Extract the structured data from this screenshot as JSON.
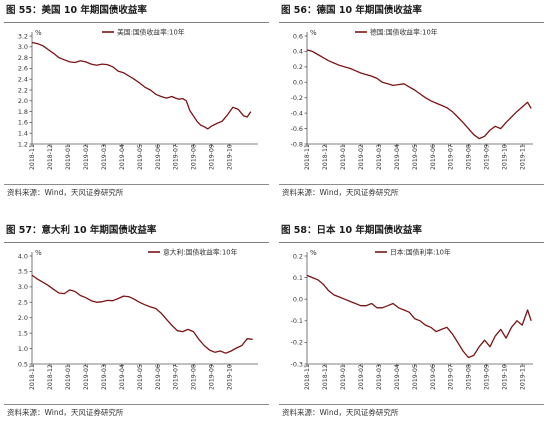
{
  "source_label": "资料来源：Wind，天风证券研究所",
  "colors": {
    "line": "#7b1515",
    "axis": "#595959",
    "text": "#333333",
    "rule": "#7f7f7f"
  },
  "chart_data": [
    {
      "type": "line",
      "title": "图 55：美国 10 年期国债收益率",
      "ylabel": "%",
      "legend": "美国:国债收益率:10年",
      "legend_position": "top-center",
      "grid": false,
      "ylim": [
        1.2,
        3.2
      ],
      "yticks": [
        "1.2",
        "1.4",
        "1.6",
        "1.8",
        "2.0",
        "2.2",
        "2.4",
        "2.6",
        "2.8",
        "3.0",
        "3.2"
      ],
      "xticks": [
        "2018-11",
        "2018-12",
        "2019-01",
        "2019-02",
        "2019-03",
        "2019-04",
        "2019-05",
        "2019-06",
        "2019-07",
        "2019-08",
        "2019-09",
        "2019-10"
      ],
      "xlim": [
        0,
        12.6
      ],
      "x": [
        0,
        0.3,
        0.6,
        0.9,
        1.2,
        1.5,
        1.8,
        2.1,
        2.4,
        2.7,
        3.0,
        3.3,
        3.6,
        3.9,
        4.2,
        4.5,
        4.8,
        5.1,
        5.4,
        5.7,
        6.0,
        6.3,
        6.6,
        6.9,
        7.2,
        7.5,
        7.8,
        8.0,
        8.2,
        8.4,
        8.6,
        8.8,
        9.0,
        9.2,
        9.4,
        9.6,
        9.8,
        10.0,
        10.3,
        10.6,
        10.9,
        11.2,
        11.5,
        11.8,
        12.0,
        12.2
      ],
      "values": [
        3.08,
        3.06,
        3.02,
        2.95,
        2.88,
        2.8,
        2.76,
        2.72,
        2.71,
        2.74,
        2.72,
        2.68,
        2.66,
        2.68,
        2.67,
        2.63,
        2.55,
        2.52,
        2.46,
        2.4,
        2.33,
        2.25,
        2.2,
        2.12,
        2.08,
        2.05,
        2.08,
        2.05,
        2.03,
        2.04,
        2.0,
        1.82,
        1.72,
        1.62,
        1.55,
        1.52,
        1.48,
        1.53,
        1.58,
        1.62,
        1.74,
        1.88,
        1.84,
        1.72,
        1.7,
        1.8
      ]
    },
    {
      "type": "line",
      "title": "图 56：德国 10 年期国债收益率",
      "ylabel": "%",
      "legend": "德国:国债收益率:10年",
      "legend_position": "top-center",
      "grid": false,
      "ylim": [
        -0.8,
        0.6
      ],
      "yticks": [
        "-0.8",
        "-0.6",
        "-0.4",
        "-0.2",
        "0.0",
        "0.2",
        "0.4",
        "0.6"
      ],
      "xticks": [
        "2018-11",
        "2018-12",
        "2019-01",
        "2019-02",
        "2019-03",
        "2019-04",
        "2019-05",
        "2019-06",
        "2019-07",
        "2019-08",
        "2019-09",
        "2019-10",
        "2019-11"
      ],
      "xlim": [
        0,
        12.6
      ],
      "x": [
        0,
        0.3,
        0.6,
        0.9,
        1.2,
        1.5,
        1.8,
        2.1,
        2.4,
        2.7,
        3.0,
        3.3,
        3.6,
        3.9,
        4.2,
        4.5,
        4.8,
        5.1,
        5.4,
        5.7,
        6.0,
        6.3,
        6.6,
        6.9,
        7.2,
        7.5,
        7.8,
        8.1,
        8.4,
        8.7,
        9.0,
        9.3,
        9.6,
        9.9,
        10.2,
        10.5,
        10.8,
        11.1,
        11.4,
        11.7,
        12.0,
        12.3,
        12.5
      ],
      "values": [
        0.42,
        0.4,
        0.36,
        0.32,
        0.28,
        0.25,
        0.22,
        0.2,
        0.18,
        0.15,
        0.12,
        0.1,
        0.08,
        0.05,
        0.0,
        -0.02,
        -0.04,
        -0.03,
        -0.02,
        -0.06,
        -0.1,
        -0.15,
        -0.2,
        -0.24,
        -0.27,
        -0.3,
        -0.33,
        -0.38,
        -0.45,
        -0.52,
        -0.6,
        -0.68,
        -0.73,
        -0.7,
        -0.62,
        -0.57,
        -0.6,
        -0.52,
        -0.45,
        -0.38,
        -0.32,
        -0.26,
        -0.34
      ]
    },
    {
      "type": "line",
      "title": "图 57：意大利 10 年期国债收益率",
      "ylabel": "%",
      "legend": "意大利:国债收益率:10年",
      "legend_position": "top-right",
      "grid": false,
      "ylim": [
        0.5,
        4.0
      ],
      "yticks": [
        "0.5",
        "1.0",
        "1.5",
        "2.0",
        "2.5",
        "3.0",
        "3.5",
        "4.0"
      ],
      "xticks": [
        "2018-11",
        "2018-12",
        "2019-01",
        "2019-02",
        "2019-03",
        "2019-04",
        "2019-05",
        "2019-06",
        "2019-07",
        "2019-08",
        "2019-09",
        "2019-10"
      ],
      "xlim": [
        0,
        12.6
      ],
      "x": [
        0,
        0.3,
        0.6,
        0.9,
        1.2,
        1.5,
        1.8,
        2.1,
        2.4,
        2.7,
        3.0,
        3.3,
        3.6,
        3.9,
        4.2,
        4.5,
        4.8,
        5.1,
        5.4,
        5.7,
        6.0,
        6.3,
        6.6,
        6.9,
        7.2,
        7.5,
        7.8,
        8.1,
        8.4,
        8.7,
        9.0,
        9.3,
        9.6,
        9.9,
        10.2,
        10.5,
        10.8,
        11.1,
        11.4,
        11.7,
        12.0,
        12.3
      ],
      "values": [
        3.38,
        3.25,
        3.15,
        3.05,
        2.92,
        2.8,
        2.78,
        2.9,
        2.85,
        2.72,
        2.65,
        2.55,
        2.5,
        2.52,
        2.56,
        2.55,
        2.62,
        2.7,
        2.68,
        2.6,
        2.5,
        2.42,
        2.35,
        2.3,
        2.15,
        1.95,
        1.75,
        1.58,
        1.55,
        1.62,
        1.55,
        1.3,
        1.1,
        0.95,
        0.88,
        0.92,
        0.85,
        0.92,
        1.02,
        1.1,
        1.32,
        1.3
      ]
    },
    {
      "type": "line",
      "title": "图 58：日本 10 年期国债收益率",
      "ylabel": "%",
      "legend": "日本:国债利率:10年",
      "legend_position": "top-center",
      "grid": false,
      "ylim": [
        -0.3,
        0.2
      ],
      "yticks": [
        "-0.3",
        "-0.2",
        "-0.1",
        "0.0",
        "0.1",
        "0.2"
      ],
      "xticks": [
        "2018-11",
        "2018-12",
        "2019-01",
        "2019-02",
        "2019-03",
        "2019-04",
        "2019-05",
        "2019-06",
        "2019-07",
        "2019-08",
        "2019-09",
        "2019-10",
        "2019-11"
      ],
      "xlim": [
        0,
        12.6
      ],
      "x": [
        0,
        0.3,
        0.6,
        0.9,
        1.2,
        1.5,
        1.8,
        2.1,
        2.4,
        2.7,
        3.0,
        3.3,
        3.6,
        3.9,
        4.2,
        4.5,
        4.8,
        5.1,
        5.4,
        5.7,
        6.0,
        6.3,
        6.6,
        6.9,
        7.2,
        7.5,
        7.8,
        8.1,
        8.4,
        8.7,
        9.0,
        9.3,
        9.6,
        9.9,
        10.2,
        10.5,
        10.8,
        11.1,
        11.4,
        11.7,
        12.0,
        12.3,
        12.5
      ],
      "values": [
        0.11,
        0.1,
        0.09,
        0.07,
        0.04,
        0.02,
        0.01,
        0.0,
        -0.01,
        -0.02,
        -0.03,
        -0.03,
        -0.02,
        -0.04,
        -0.04,
        -0.03,
        -0.02,
        -0.04,
        -0.05,
        -0.06,
        -0.09,
        -0.1,
        -0.12,
        -0.13,
        -0.15,
        -0.14,
        -0.13,
        -0.16,
        -0.2,
        -0.24,
        -0.27,
        -0.26,
        -0.22,
        -0.19,
        -0.22,
        -0.17,
        -0.14,
        -0.18,
        -0.13,
        -0.1,
        -0.12,
        -0.05,
        -0.1
      ]
    }
  ]
}
